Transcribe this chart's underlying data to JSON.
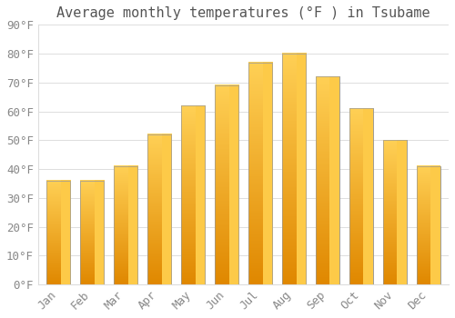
{
  "title": "Average monthly temperatures (°F ) in Tsubame",
  "months": [
    "Jan",
    "Feb",
    "Mar",
    "Apr",
    "May",
    "Jun",
    "Jul",
    "Aug",
    "Sep",
    "Oct",
    "Nov",
    "Dec"
  ],
  "values": [
    36,
    36,
    41,
    52,
    62,
    69,
    77,
    80,
    72,
    61,
    50,
    41
  ],
  "bar_color_main": "#F5A800",
  "bar_color_light": "#FFD055",
  "bar_color_dark": "#E08800",
  "bar_edge_color": "#999999",
  "ylim": [
    0,
    90
  ],
  "ytick_step": 10,
  "background_color": "#FFFFFF",
  "plot_bg_color": "#FFFFFF",
  "grid_color": "#DDDDDD",
  "title_fontsize": 11,
  "tick_fontsize": 9,
  "tick_label_color": "#888888",
  "title_color": "#555555",
  "bar_width": 0.7
}
